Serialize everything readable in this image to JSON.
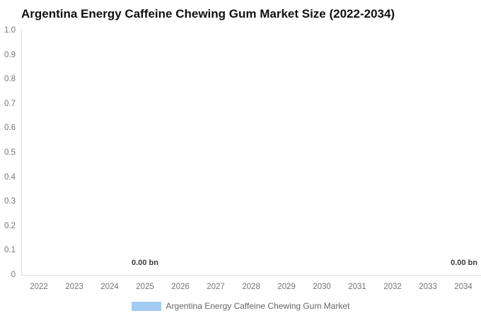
{
  "title": "Argentina Energy Caffeine Chewing Gum Market Size (2022-2034)",
  "axes": {
    "y_ticks": [
      "1.0",
      "0.9",
      "0.8",
      "0.7",
      "0.6",
      "0.5",
      "0.4",
      "0.3",
      "0.2",
      "0.1",
      "0"
    ],
    "x_ticks": [
      "2022",
      "2023",
      "2024",
      "2025",
      "2026",
      "2027",
      "2028",
      "2029",
      "2030",
      "2031",
      "2032",
      "2033",
      "2034"
    ]
  },
  "data_labels": {
    "label_2025": "0.00 bn",
    "label_2034": "0.00 bn"
  },
  "legend": {
    "label": "Argentina Energy Caffeine Chewing Gum Market",
    "swatch_color": "#a3ccf3"
  },
  "colors": {
    "series": "#a3ccf3",
    "axis_line": "#d9d9d9",
    "tick_text": "#757575",
    "title_text": "#111111",
    "legend_text": "#666666",
    "data_label_text": "#3a3a3a",
    "background": "#ffffff"
  },
  "chart_data": {
    "type": "bar",
    "title": "Argentina Energy Caffeine Chewing Gum Market Size (2022-2034)",
    "categories": [
      "2022",
      "2023",
      "2024",
      "2025",
      "2026",
      "2027",
      "2028",
      "2029",
      "2030",
      "2031",
      "2032",
      "2033",
      "2034"
    ],
    "series": [
      {
        "name": "Argentina Energy Caffeine Chewing Gum Market",
        "values": [
          0,
          0,
          0,
          0,
          0,
          0,
          0,
          0,
          0,
          0,
          0,
          0,
          0
        ],
        "unit": "bn",
        "color": "#a3ccf3"
      }
    ],
    "data_labels": [
      {
        "category": "2025",
        "text": "0.00 bn"
      },
      {
        "category": "2034",
        "text": "0.00 bn"
      }
    ],
    "xlabel": "",
    "ylabel": "",
    "ylim": [
      0,
      1.0
    ],
    "y_tick_step": 0.1,
    "grid": false,
    "legend_position": "bottom"
  }
}
